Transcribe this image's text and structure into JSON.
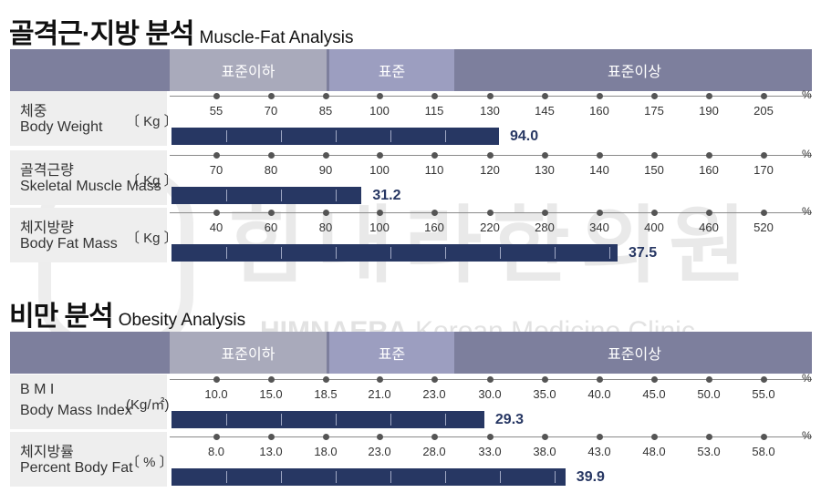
{
  "watermark": {
    "korean": "힘내라한의원",
    "english_bold": "HIMNAERA",
    "english_rest": " Korean Medicine Clinic"
  },
  "sections": [
    {
      "title_ko": "골격근·지방 분석",
      "title_en": "Muscle-Fat Analysis",
      "header": [
        "표준이하",
        "표준",
        "표준이상"
      ]
    },
    {
      "title_ko": "비만 분석",
      "title_en": "Obesity Analysis",
      "header": [
        "표준이하",
        "표준",
        "표준이상"
      ]
    }
  ],
  "percent_symbol": "%",
  "chart_data": [
    {
      "type": "bar",
      "title": "골격근·지방 분석 Muscle-Fat Analysis",
      "rows": [
        {
          "label_ko": "체중",
          "label_en": "Body Weight",
          "unit": "〔 Kg 〕",
          "ticks": [
            "55",
            "70",
            "85",
            "100",
            "115",
            "130",
            "145",
            "160",
            "175",
            "190",
            "205"
          ],
          "value": 94.0,
          "value_label": "94.0",
          "percent_of_standard": 132.5
        },
        {
          "label_ko": "골격근량",
          "label_en": "Skeletal Muscle Mass",
          "unit": "〔 Kg 〕",
          "ticks": [
            "70",
            "80",
            "90",
            "100",
            "110",
            "120",
            "130",
            "140",
            "150",
            "160",
            "170"
          ],
          "value": 31.2,
          "value_label": "31.2",
          "percent_of_standard": 95
        },
        {
          "label_ko": "체지방량",
          "label_en": "Body Fat Mass",
          "unit": "〔 Kg 〕",
          "ticks": [
            "40",
            "60",
            "80",
            "100",
            "160",
            "220",
            "280",
            "340",
            "400",
            "460",
            "520"
          ],
          "value": 37.5,
          "value_label": "37.5",
          "percent_of_standard": 365
        }
      ]
    },
    {
      "type": "bar",
      "title": "비만 분석 Obesity Analysis",
      "rows": [
        {
          "label_ko": "B M I",
          "label_en": "Body Mass Index",
          "unit": "(Kg/㎡)",
          "ticks": [
            "10.0",
            "15.0",
            "18.5",
            "21.0",
            "23.0",
            "30.0",
            "35.0",
            "40.0",
            "45.0",
            "50.0",
            "55.0"
          ],
          "value": 29.3,
          "value_label": "29.3"
        },
        {
          "label_ko": "체지방률",
          "label_en": "Percent Body Fat",
          "unit": "〔 % 〕",
          "ticks": [
            "8.0",
            "13.0",
            "18.0",
            "23.0",
            "28.0",
            "33.0",
            "38.0",
            "43.0",
            "48.0",
            "53.0",
            "58.0"
          ],
          "value": 39.9,
          "value_label": "39.9"
        }
      ]
    }
  ]
}
